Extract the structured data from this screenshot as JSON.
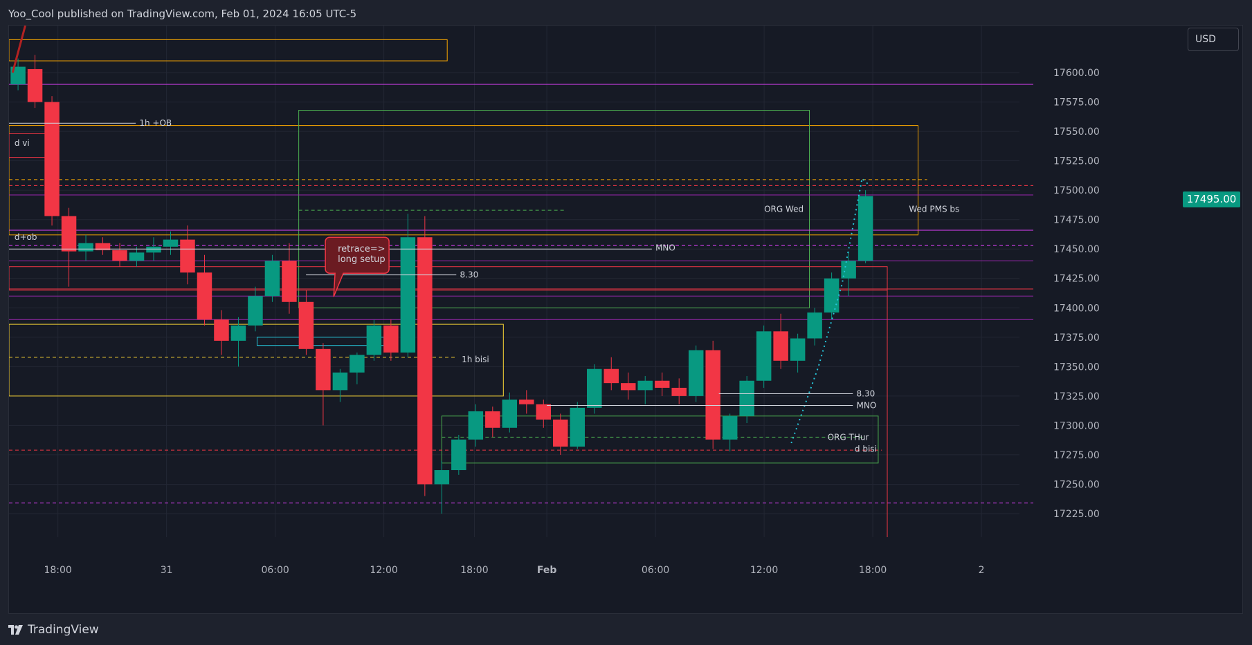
{
  "header": {
    "publisher_line": "Yoo_Cool published on TradingView.com, Feb 01, 2024 16:05 UTC-5"
  },
  "price_axis": {
    "currency": "USD",
    "last_price_label": "17495.00"
  },
  "footer": {
    "brand": "TradingView",
    "logo_icon": "tradingview-logo-icon"
  },
  "colors": {
    "background": "#161a25",
    "up": "#089981",
    "down": "#f23645",
    "grid": "#232734",
    "orange": "#f7a600",
    "magenta": "#e040fb",
    "purple": "#9c27b0",
    "green": "#4caf50",
    "yellow": "#fdd835",
    "teal": "#26c6da",
    "red": "#f23645",
    "white": "#d1d4dc"
  },
  "chart_data": {
    "type": "candlestick",
    "symbol_interval": "15m",
    "ylim": [
      17205,
      17640
    ],
    "y_ticks": [
      17600,
      17575,
      17550,
      17525,
      17500,
      17475,
      17450,
      17425,
      17400,
      17375,
      17350,
      17325,
      17300,
      17275,
      17250,
      17225
    ],
    "y_tick_labels": [
      "17600.00",
      "17575.00",
      "17550.00",
      "17525.00",
      "17500.00",
      "17475.00",
      "17450.00",
      "17425.00",
      "17400.00",
      "17375.00",
      "17350.00",
      "17325.00",
      "17300.00",
      "17275.00",
      "17250.00",
      "17225.00"
    ],
    "x_tick_labels": [
      "18:00",
      "31",
      "06:00",
      "12:00",
      "18:00",
      "Feb",
      "06:00",
      "12:00",
      "18:00",
      "2"
    ],
    "x_tick_bars": [
      4,
      10,
      16,
      22,
      27,
      31,
      37,
      43,
      49,
      55
    ],
    "bar_count_range": [
      1.3,
      57.1
    ],
    "last_price": 17495,
    "candles": [
      [
        17590,
        17612,
        17585,
        17605
      ],
      [
        17603,
        17615,
        17570,
        17575
      ],
      [
        17575,
        17580,
        17470,
        17478
      ],
      [
        17478,
        17485,
        17418,
        17448
      ],
      [
        17448,
        17462,
        17440,
        17455
      ],
      [
        17455,
        17460,
        17445,
        17449
      ],
      [
        17449,
        17455,
        17435,
        17440
      ],
      [
        17440,
        17452,
        17435,
        17447
      ],
      [
        17447,
        17460,
        17440,
        17452
      ],
      [
        17452,
        17465,
        17445,
        17458
      ],
      [
        17458,
        17470,
        17420,
        17430
      ],
      [
        17430,
        17445,
        17385,
        17390
      ],
      [
        17390,
        17398,
        17360,
        17372
      ],
      [
        17372,
        17392,
        17350,
        17385
      ],
      [
        17385,
        17418,
        17380,
        17410
      ],
      [
        17410,
        17445,
        17405,
        17440
      ],
      [
        17440,
        17455,
        17395,
        17405
      ],
      [
        17405,
        17415,
        17360,
        17365
      ],
      [
        17365,
        17370,
        17300,
        17330
      ],
      [
        17330,
        17348,
        17320,
        17345
      ],
      [
        17345,
        17362,
        17335,
        17360
      ],
      [
        17360,
        17390,
        17355,
        17385
      ],
      [
        17385,
        17390,
        17355,
        17362
      ],
      [
        17362,
        17480,
        17358,
        17460
      ],
      [
        17460,
        17478,
        17240,
        17250
      ],
      [
        17250,
        17270,
        17225,
        17262
      ],
      [
        17262,
        17292,
        17258,
        17288
      ],
      [
        17288,
        17318,
        17282,
        17312
      ],
      [
        17312,
        17316,
        17290,
        17298
      ],
      [
        17298,
        17328,
        17294,
        17322
      ],
      [
        17322,
        17330,
        17310,
        17318
      ],
      [
        17318,
        17322,
        17298,
        17305
      ],
      [
        17305,
        17310,
        17275,
        17282
      ],
      [
        17282,
        17320,
        17280,
        17315
      ],
      [
        17315,
        17352,
        17310,
        17348
      ],
      [
        17348,
        17358,
        17330,
        17336
      ],
      [
        17336,
        17345,
        17322,
        17330
      ],
      [
        17330,
        17342,
        17318,
        17338
      ],
      [
        17338,
        17345,
        17325,
        17332
      ],
      [
        17332,
        17340,
        17318,
        17325
      ],
      [
        17325,
        17368,
        17320,
        17364
      ],
      [
        17364,
        17372,
        17280,
        17288
      ],
      [
        17288,
        17310,
        17278,
        17308
      ],
      [
        17308,
        17342,
        17302,
        17338
      ],
      [
        17338,
        17385,
        17332,
        17380
      ],
      [
        17380,
        17395,
        17348,
        17355
      ],
      [
        17355,
        17378,
        17345,
        17374
      ],
      [
        17374,
        17400,
        17368,
        17396
      ],
      [
        17396,
        17430,
        17390,
        17425
      ],
      [
        17425,
        17448,
        17410,
        17440
      ],
      [
        17440,
        17500,
        17438,
        17495
      ]
    ],
    "horizontal_levels": [
      {
        "price": 17590,
        "color": "magenta",
        "style": "solid"
      },
      {
        "price": 17466,
        "color": "magenta",
        "style": "solid"
      },
      {
        "price": 17440,
        "color": "purple",
        "style": "solid"
      },
      {
        "price": 17410,
        "color": "purple",
        "style": "solid"
      },
      {
        "price": 17390,
        "color": "purple",
        "style": "solid"
      },
      {
        "price": 17416,
        "color": "red",
        "style": "solid"
      },
      {
        "price": 17496,
        "color": "purple",
        "style": "solid"
      },
      {
        "price": 17504,
        "color": "red",
        "style": "dashed"
      },
      {
        "price": 17453,
        "color": "magenta",
        "style": "dashed"
      },
      {
        "price": 17234,
        "color": "magenta",
        "style": "dashed"
      }
    ],
    "annotations": [
      {
        "label": "1h +OB"
      },
      {
        "label": "d vi"
      },
      {
        "label": "d+ob"
      },
      {
        "label": "MNO"
      },
      {
        "label": "8.30"
      },
      {
        "label": "1h bisi"
      },
      {
        "label": "ORG Wed"
      },
      {
        "label": "Wed PMS bs"
      },
      {
        "label": "8.30"
      },
      {
        "label": "MNO"
      },
      {
        "label": "ORG THur"
      },
      {
        "label": "d bisi"
      }
    ],
    "callout": {
      "line1": "retrace=>",
      "line2": "long setup"
    }
  }
}
